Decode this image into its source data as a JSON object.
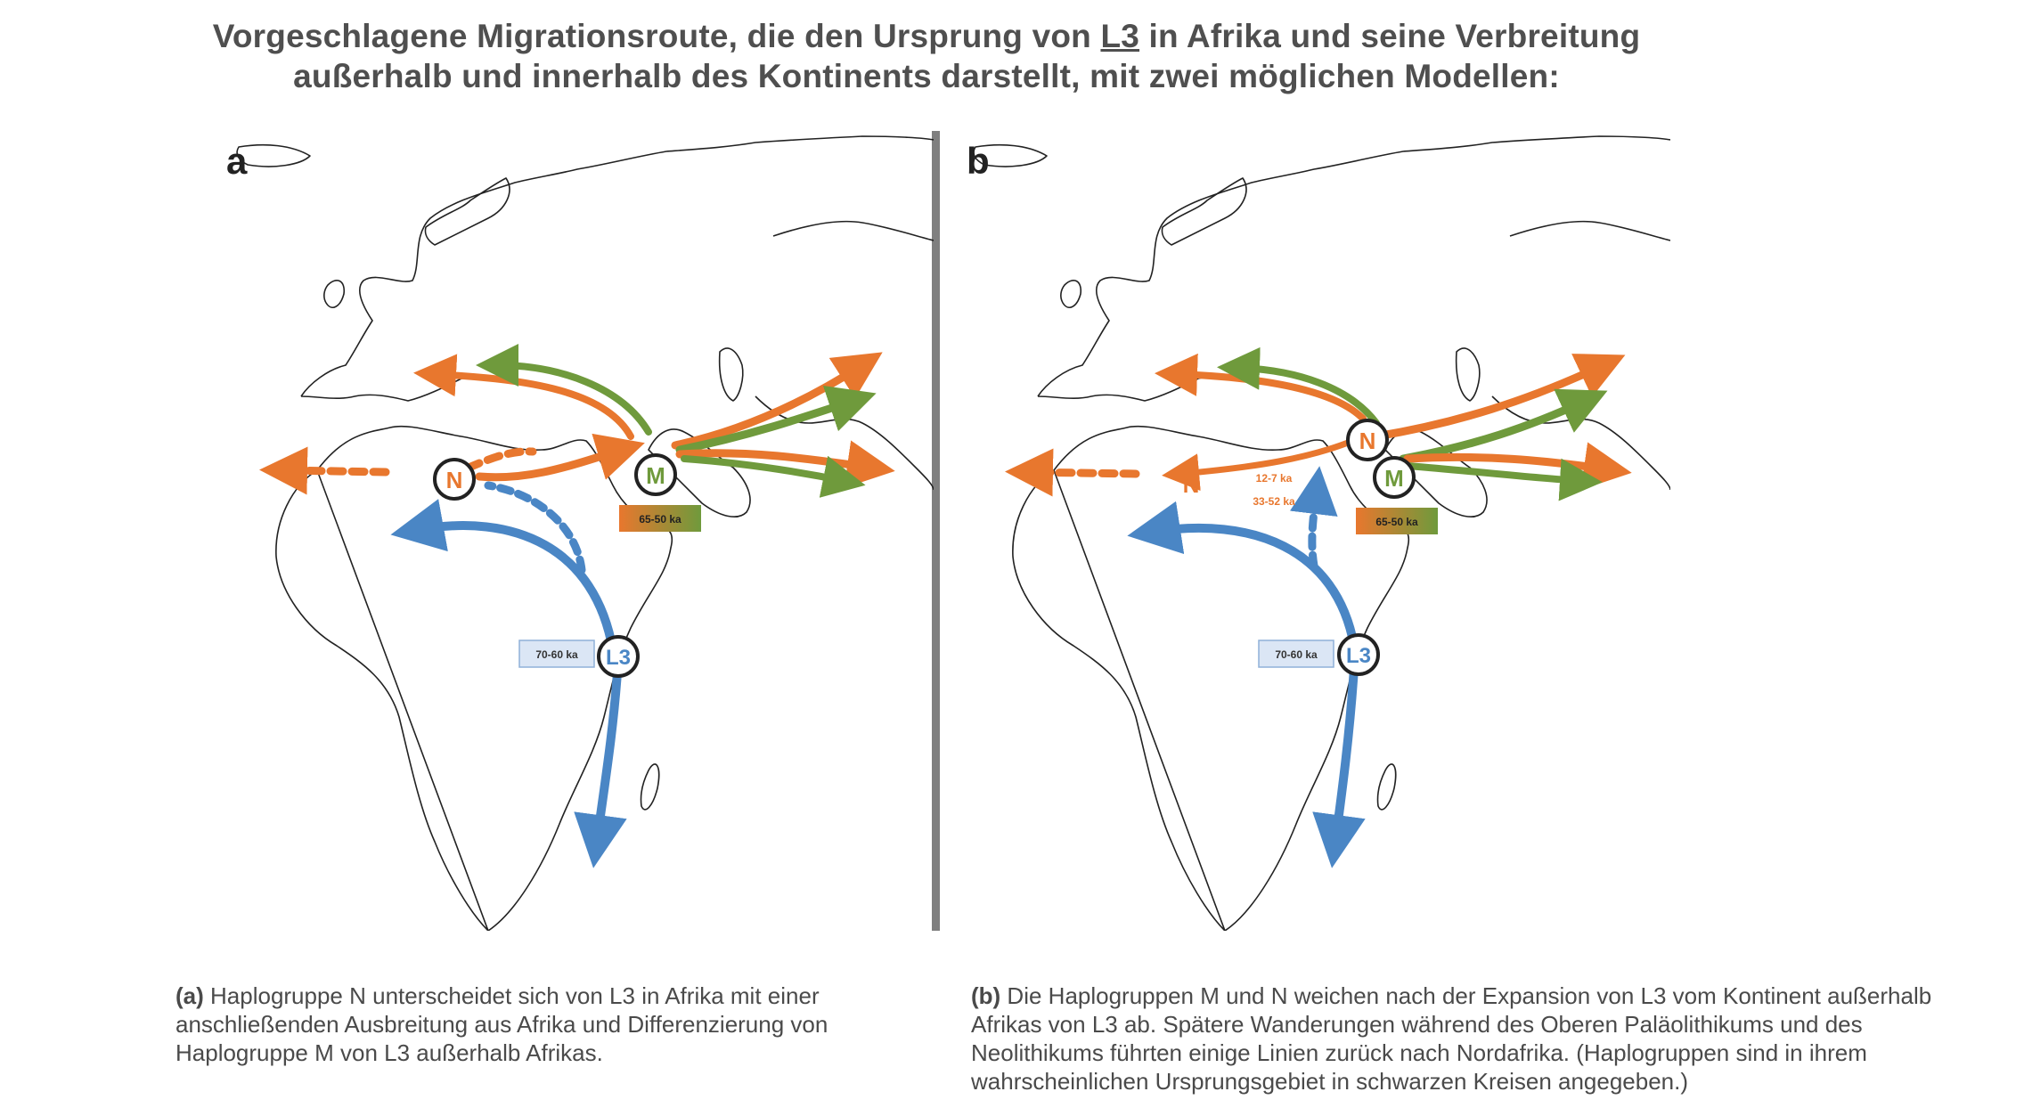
{
  "title": {
    "part1": "Vorgeschlagene Migrationsroute, die den Ursprung von ",
    "l3": "L3",
    "part2": " in Afrika und seine Verbreitung",
    "line2": "außerhalb und innerhalb des Kontinents darstellt, mit zwei möglichen Modellen:"
  },
  "colors": {
    "orange": "#e8772e",
    "green": "#6f9a3c",
    "blue": "#4a86c5",
    "divider": "#7f7f7f"
  },
  "panel_a": {
    "letter": "a",
    "node_n": "N",
    "node_m": "M",
    "node_l3": "L3",
    "date_m": "65-50 ka",
    "date_l3": "70-60 ka"
  },
  "panel_b": {
    "letter": "b",
    "node_n": "N",
    "node_m": "M",
    "node_l3": "L3",
    "n_label": "N",
    "date_upper": "12-7 ka",
    "date_lower": "33-52 ka",
    "date_m": "65-50 ka",
    "date_l3": "70-60 ka"
  },
  "captions": {
    "a_tag": "(a)",
    "a_text": " Haplogruppe N unterscheidet sich von L3 in Afrika mit einer anschließenden Ausbreitung aus Afrika und Differenzierung von Haplogruppe M von L3 außerhalb Afrikas.",
    "b_tag": "(b)",
    "b_text": " Die Haplogruppen M und N weichen nach der Expansion von L3 vom Kontinent außerhalb Afrikas von L3 ab. Spätere Wanderungen während des Oberen Paläolithikums und des Neolithikums führten einige Linien zurück nach Nordafrika. (Haplogruppen sind in ihrem wahrscheinlichen Ursprungsgebiet in schwarzen Kreisen angegeben.)"
  }
}
